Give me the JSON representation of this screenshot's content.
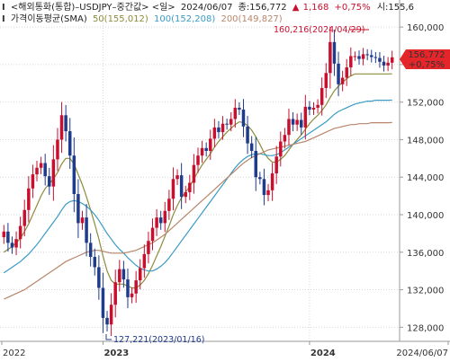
{
  "header": {
    "line1": {
      "marker": "I",
      "title": "<해외통화(통합)–USDJPY–중간값> <일>",
      "date": "2024/06/07",
      "close_label": "종:156,772",
      "change_symbol": "▲",
      "change": "1,168",
      "change_pct": "+0,75%",
      "open_label": "시:155,6"
    },
    "line2": {
      "marker": "I",
      "title": "가격이동평균(SMA)",
      "ma50": "50(155,012)",
      "ma100": "100(152,208)",
      "ma200": "200(149,827)"
    }
  },
  "colors": {
    "up": "#c8102e",
    "down": "#1f3b8c",
    "ma50": "#8c8c3c",
    "ma100": "#3a9bc4",
    "ma200": "#b8866a",
    "grid": "#d7d7d7",
    "price_tag": "#e4262a",
    "annotation_high": "#c8102e",
    "annotation_low": "#1f3b8c"
  },
  "price_tag": {
    "price": "156,772",
    "pct": "+0,75%"
  },
  "annotations": {
    "high": "160,216(2024/04/29)",
    "low": "127,221(2023/01/16)"
  },
  "chart_data": {
    "type": "candlestick",
    "title": "<해외통화(통합)–USDJPY–중간값> <일>",
    "ylim": [
      126.5,
      162.5
    ],
    "y_ticks": [
      "128,000",
      "132,000",
      "136,000",
      "140,000",
      "144,000",
      "148,000",
      "152,000",
      "156,000",
      "160,000"
    ],
    "y_tick_values": [
      128,
      132,
      136,
      140,
      144,
      148,
      152,
      156,
      160
    ],
    "x_labels": [
      "2022",
      "2023",
      "2024",
      "2024/06/07"
    ],
    "x_label_positions_index": [
      0,
      24,
      74,
      94
    ],
    "bold_x_labels": [
      "2023",
      "2024"
    ],
    "grid": true,
    "last_close": 156.772,
    "high_point": {
      "date": "2024/04/29",
      "value": 160.216
    },
    "low_point": {
      "date": "2023/01/16",
      "value": 127.221
    },
    "weekly_close": [
      138.2,
      137.0,
      136.5,
      137.4,
      138.8,
      140.5,
      142.8,
      144.3,
      145.0,
      145.5,
      144.1,
      143.0,
      145.9,
      148.0,
      150.6,
      148.9,
      146.3,
      142.2,
      139.1,
      139.7,
      137.0,
      135.5,
      134.4,
      132.2,
      129.0,
      128.3,
      130.4,
      132.8,
      134.2,
      133.1,
      131.2,
      131.6,
      133.0,
      134.3,
      135.8,
      137.2,
      138.6,
      139.7,
      139.1,
      140.4,
      141.7,
      143.8,
      144.2,
      141.9,
      142.4,
      143.4,
      145.3,
      146.3,
      147.1,
      146.8,
      148.1,
      149.3,
      148.8,
      149.7,
      149.6,
      150.2,
      151.4,
      151.2,
      149.4,
      147.6,
      146.8,
      144.0,
      143.8,
      142.1,
      142.6,
      144.4,
      146.2,
      147.8,
      148.5,
      150.2,
      149.6,
      150.1,
      149.3,
      151.5,
      151.2,
      151.4,
      151.7,
      153.5,
      155.1,
      158.4,
      156.1,
      153.9,
      154.6,
      155.7,
      156.9,
      156.9,
      156.6,
      157.1,
      157.0,
      156.8,
      156.7,
      156.3,
      155.9,
      156.2,
      156.772
    ],
    "series": [
      {
        "name": "50(155,012)",
        "values": [
          136.0,
          136.3,
          136.6,
          137.0,
          137.5,
          138.2,
          139.0,
          140.0,
          141.0,
          142.0,
          142.8,
          143.3,
          143.8,
          144.5,
          145.4,
          146.0,
          146.0,
          145.4,
          144.3,
          143.2,
          141.9,
          140.5,
          139.0,
          137.4,
          135.6,
          134.0,
          133.0,
          132.6,
          132.6,
          132.6,
          132.4,
          132.2,
          132.2,
          132.5,
          133.0,
          133.7,
          134.6,
          135.6,
          136.6,
          137.7,
          138.8,
          140.0,
          141.0,
          141.8,
          142.4,
          143.0,
          143.8,
          144.6,
          145.3,
          145.9,
          146.5,
          147.2,
          147.8,
          148.3,
          148.8,
          149.2,
          149.6,
          149.9,
          149.8,
          149.5,
          149.0,
          148.3,
          147.5,
          146.6,
          146.0,
          145.6,
          145.6,
          145.9,
          146.3,
          146.9,
          147.5,
          148.0,
          148.5,
          149.1,
          149.7,
          150.2,
          150.6,
          151.1,
          151.7,
          152.5,
          153.2,
          153.7,
          154.1,
          154.5,
          154.8,
          155.0,
          155.0,
          155.0,
          155.0,
          155.0,
          155.0,
          155.0,
          155.0,
          155.0,
          155.012
        ]
      },
      {
        "name": "100(152,208)",
        "values": [
          133.8,
          134.1,
          134.4,
          134.7,
          135.0,
          135.4,
          135.8,
          136.3,
          136.8,
          137.4,
          138.0,
          138.6,
          139.2,
          139.8,
          140.5,
          141.1,
          141.4,
          141.5,
          141.4,
          141.2,
          140.9,
          140.5,
          140.0,
          139.4,
          138.7,
          138.0,
          137.4,
          136.8,
          136.3,
          135.9,
          135.4,
          135.0,
          134.6,
          134.3,
          134.1,
          134.0,
          134.0,
          134.2,
          134.5,
          134.9,
          135.4,
          136.0,
          136.6,
          137.2,
          137.8,
          138.4,
          139.0,
          139.6,
          140.2,
          140.8,
          141.4,
          142.0,
          142.6,
          143.2,
          143.8,
          144.4,
          145.0,
          145.5,
          145.9,
          146.2,
          146.4,
          146.5,
          146.5,
          146.4,
          146.3,
          146.3,
          146.4,
          146.6,
          146.9,
          147.2,
          147.5,
          147.8,
          148.1,
          148.4,
          148.7,
          149.0,
          149.3,
          149.6,
          149.9,
          150.3,
          150.7,
          151.0,
          151.2,
          151.4,
          151.6,
          151.8,
          151.9,
          152.0,
          152.1,
          152.1,
          152.2,
          152.2,
          152.2,
          152.2,
          152.208
        ]
      },
      {
        "name": "200(149,827)",
        "values": [
          131.0,
          131.2,
          131.4,
          131.6,
          131.8,
          132.0,
          132.3,
          132.6,
          132.9,
          133.2,
          133.5,
          133.8,
          134.1,
          134.4,
          134.7,
          135.0,
          135.2,
          135.4,
          135.6,
          135.8,
          136.0,
          136.1,
          136.2,
          136.2,
          136.1,
          136.0,
          135.9,
          135.9,
          135.9,
          135.9,
          136.0,
          136.1,
          136.2,
          136.4,
          136.6,
          136.8,
          137.0,
          137.3,
          137.6,
          137.9,
          138.3,
          138.7,
          139.1,
          139.5,
          139.9,
          140.3,
          140.7,
          141.1,
          141.5,
          141.9,
          142.3,
          142.7,
          143.1,
          143.5,
          143.9,
          144.3,
          144.7,
          145.1,
          145.5,
          145.8,
          146.1,
          146.3,
          146.5,
          146.7,
          146.9,
          147.0,
          147.1,
          147.2,
          147.3,
          147.4,
          147.5,
          147.6,
          147.7,
          147.8,
          148.0,
          148.2,
          148.4,
          148.6,
          148.8,
          149.0,
          149.2,
          149.3,
          149.4,
          149.5,
          149.6,
          149.6,
          149.7,
          149.7,
          149.7,
          149.8,
          149.8,
          149.8,
          149.8,
          149.8,
          149.827
        ]
      }
    ]
  }
}
